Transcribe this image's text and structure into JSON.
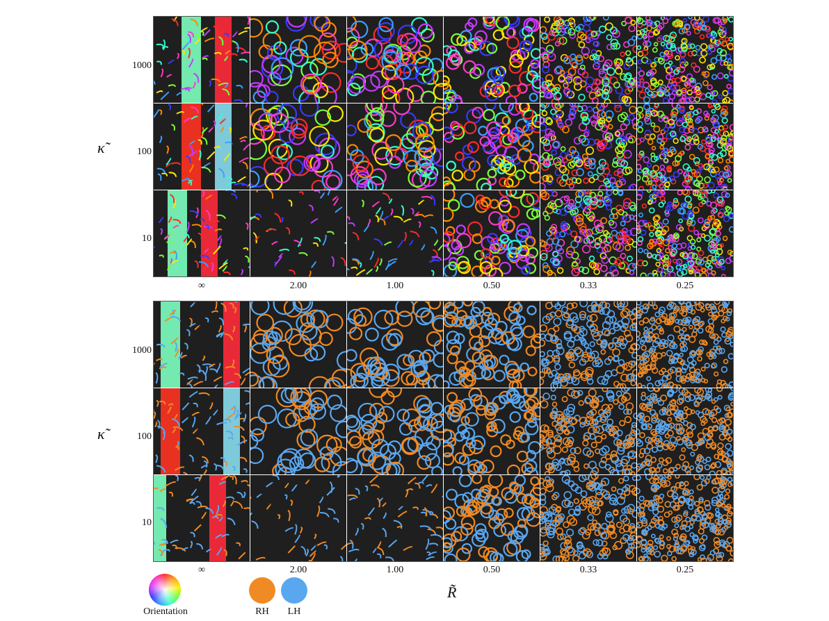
{
  "figure": {
    "kappa_symbol": "κ̃",
    "r_symbol": "R̃",
    "y_ticks": [
      "1000",
      "100",
      "10"
    ],
    "x_ticks": [
      "∞",
      "2.00",
      "1.00",
      "0.50",
      "0.33",
      "0.25"
    ],
    "top_panel": {
      "coloring": "orientation"
    },
    "bottom_panel": {
      "coloring": "handedness"
    }
  },
  "legend": {
    "orientation_label": "Orientation",
    "rh_label": "RH",
    "lh_label": "LH",
    "rh_color": "#f08a24",
    "lh_color": "#5aa7f0"
  },
  "colors": {
    "background": "#1f1f1f",
    "orientation_palette": [
      "#ff2a2a",
      "#ff8800",
      "#ffe600",
      "#7dff3a",
      "#33ffd0",
      "#3aa0ff",
      "#3a3aff",
      "#c43aff",
      "#ff3ac8"
    ]
  }
}
